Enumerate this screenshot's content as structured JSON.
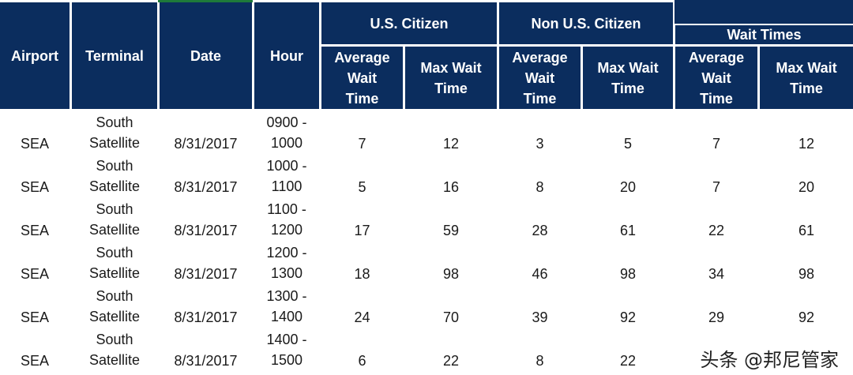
{
  "headers": {
    "airport": "Airport",
    "terminal": "Terminal",
    "date": "Date",
    "hour": "Hour",
    "us_citizen": "U.S. Citizen",
    "non_us_citizen": "Non U.S. Citizen",
    "wait_times": "Wait Times",
    "avg_l1": "Average",
    "avg_l2": "Wait",
    "avg_l3": "Time",
    "max_l1": "Max Wait",
    "max_l2": "Time"
  },
  "rows": [
    {
      "airport": "SEA",
      "terminal_l1": "South",
      "terminal_l2": "Satellite",
      "date": "8/31/2017",
      "hour_l1": "0900 -",
      "hour_l2": "1000",
      "us_avg": "7",
      "us_max": "12",
      "non_avg": "3",
      "non_max": "5",
      "all_avg": "7",
      "all_max": "12"
    },
    {
      "airport": "SEA",
      "terminal_l1": "South",
      "terminal_l2": "Satellite",
      "date": "8/31/2017",
      "hour_l1": "1000 -",
      "hour_l2": "1100",
      "us_avg": "5",
      "us_max": "16",
      "non_avg": "8",
      "non_max": "20",
      "all_avg": "7",
      "all_max": "20"
    },
    {
      "airport": "SEA",
      "terminal_l1": "South",
      "terminal_l2": "Satellite",
      "date": "8/31/2017",
      "hour_l1": "1100 -",
      "hour_l2": "1200",
      "us_avg": "17",
      "us_max": "59",
      "non_avg": "28",
      "non_max": "61",
      "all_avg": "22",
      "all_max": "61"
    },
    {
      "airport": "SEA",
      "terminal_l1": "South",
      "terminal_l2": "Satellite",
      "date": "8/31/2017",
      "hour_l1": "1200 -",
      "hour_l2": "1300",
      "us_avg": "18",
      "us_max": "98",
      "non_avg": "46",
      "non_max": "98",
      "all_avg": "34",
      "all_max": "98"
    },
    {
      "airport": "SEA",
      "terminal_l1": "South",
      "terminal_l2": "Satellite",
      "date": "8/31/2017",
      "hour_l1": "1300 -",
      "hour_l2": "1400",
      "us_avg": "24",
      "us_max": "70",
      "non_avg": "39",
      "non_max": "92",
      "all_avg": "29",
      "all_max": "92"
    },
    {
      "airport": "SEA",
      "terminal_l1": "South",
      "terminal_l2": "Satellite",
      "date": "8/31/2017",
      "hour_l1": "1400 -",
      "hour_l2": "1500",
      "us_avg": "6",
      "us_max": "22",
      "non_avg": "8",
      "non_max": "22",
      "all_avg": "",
      "all_max": ""
    }
  ],
  "watermark": "头条 @邦尼管家",
  "colors": {
    "header_bg": "#0b2d5e",
    "header_text": "#ffffff",
    "accent_green": "#1e7a3a"
  }
}
